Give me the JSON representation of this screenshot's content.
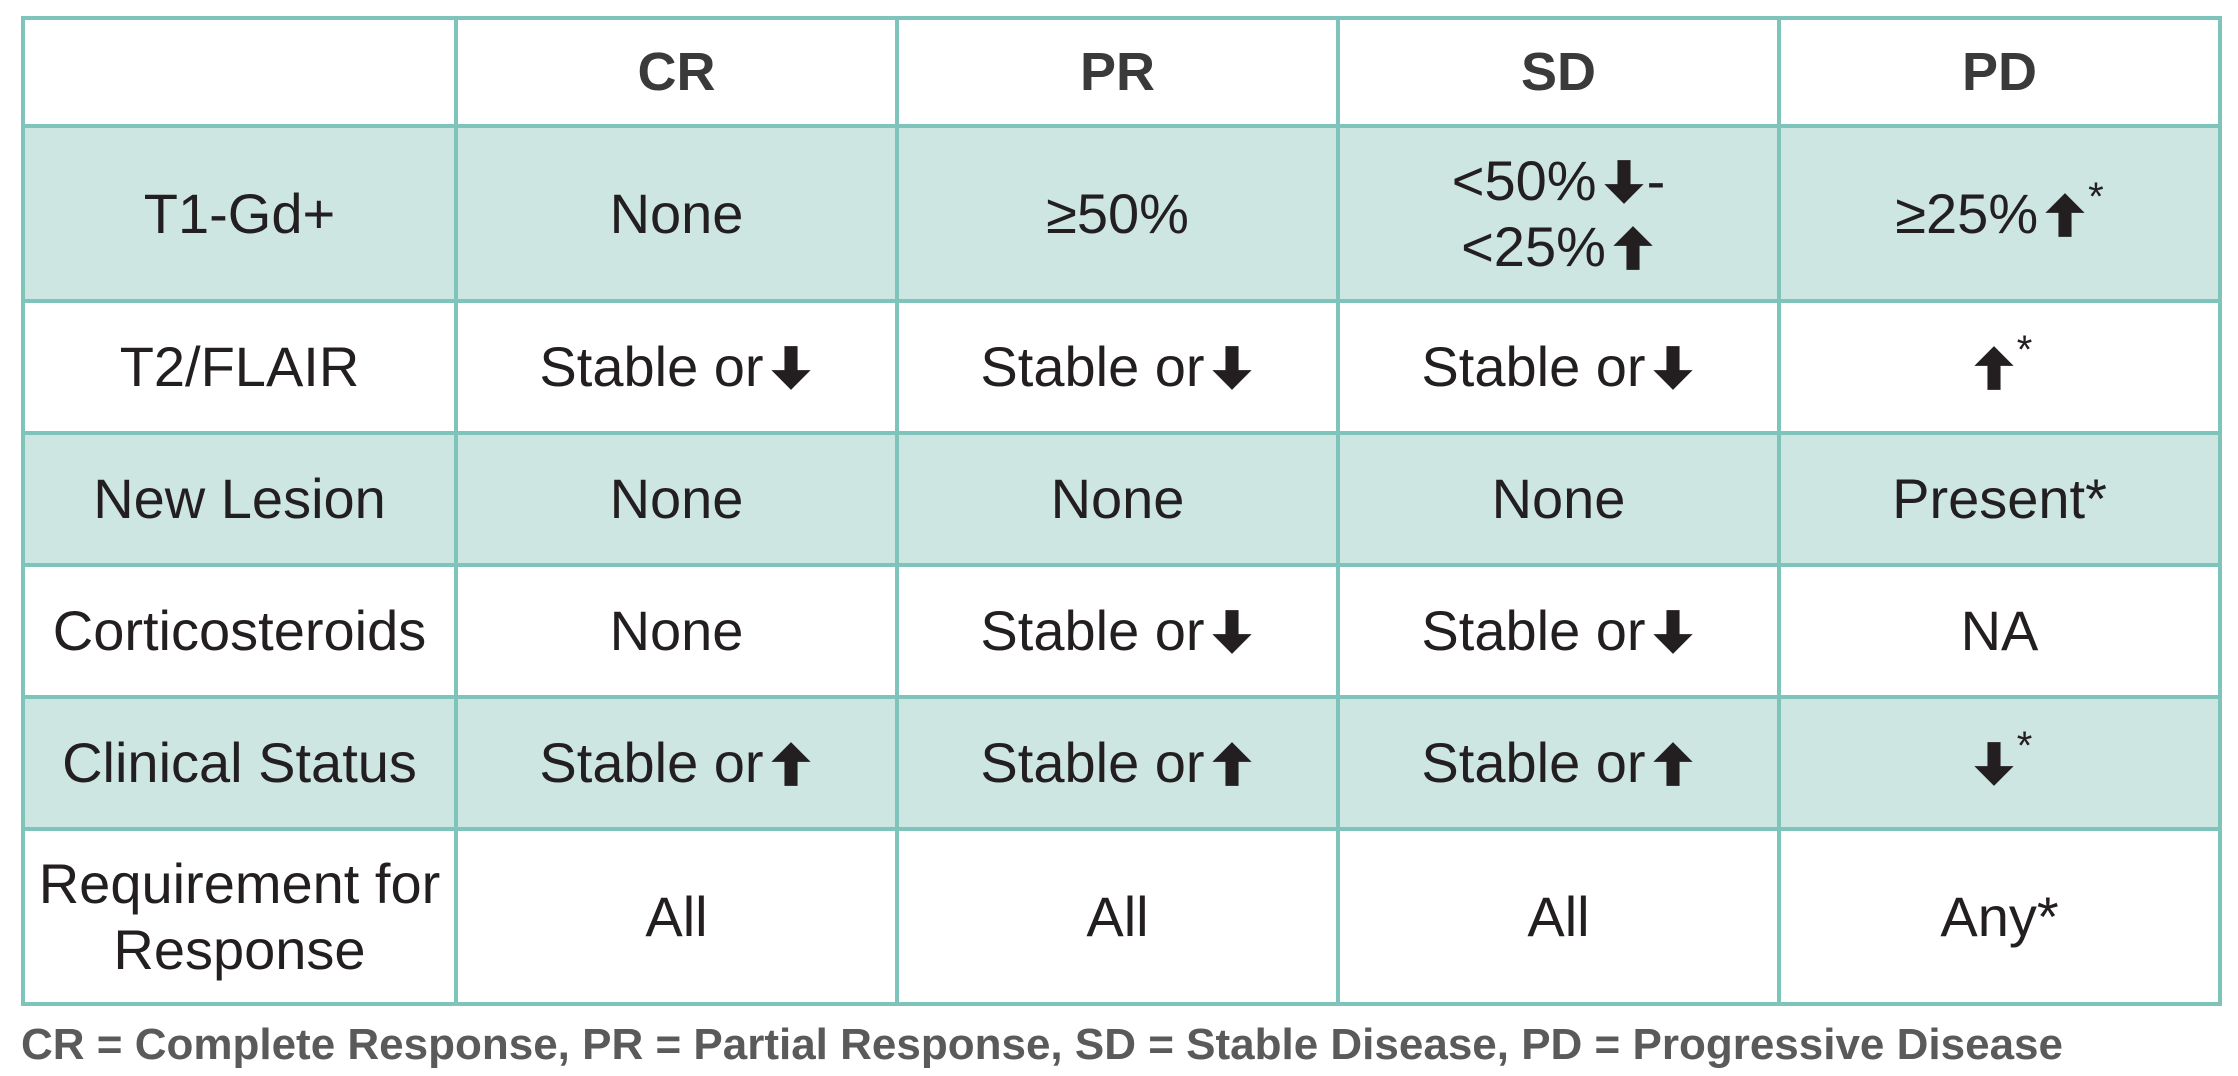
{
  "table": {
    "corner": "",
    "headers": [
      "CR",
      "PR",
      "SD",
      "PD"
    ],
    "rows": [
      {
        "label": "T1-Gd+",
        "cr": "None",
        "pr": "≥50%",
        "sd_line1": "<50%",
        "sd_line1_icon": "arrow-down-icon",
        "sd_line1_suffix": "-",
        "sd_line2": "<25%",
        "sd_line2_icon": "arrow-up-icon",
        "pd": "≥25%",
        "pd_icon": "arrow-up-icon",
        "pd_star": "*"
      },
      {
        "label": "T2/FLAIR",
        "cr": "Stable or",
        "cr_icon": "arrow-down-icon",
        "pr": "Stable or",
        "pr_icon": "arrow-down-icon",
        "sd": "Stable or",
        "sd_icon": "arrow-down-icon",
        "pd_icon": "arrow-up-icon",
        "pd_star": "*"
      },
      {
        "label": "New Lesion",
        "cr": "None",
        "pr": "None",
        "sd": "None",
        "pd": "Present*"
      },
      {
        "label": "Corticosteroids",
        "cr": "None",
        "pr": "Stable or",
        "pr_icon": "arrow-down-icon",
        "sd": "Stable or",
        "sd_icon": "arrow-down-icon",
        "pd": "NA"
      },
      {
        "label": "Clinical Status",
        "cr": "Stable or",
        "cr_icon": "arrow-up-icon",
        "pr": "Stable or",
        "pr_icon": "arrow-up-icon",
        "sd": "Stable or",
        "sd_icon": "arrow-up-icon",
        "pd_icon": "arrow-down-icon",
        "pd_star": "*"
      },
      {
        "label_line1": "Requirement for",
        "label_line2": "Response",
        "cr": "All",
        "pr": "All",
        "sd": "All",
        "pd": "Any*"
      }
    ]
  },
  "footnote": "CR = Complete Response, PR = Partial Response, SD = Stable Disease, PD = Progressive Disease",
  "colors": {
    "border": "#7fc4bb",
    "shaded_row": "#cde6e2",
    "text": "#231f20",
    "header_text": "#3a3a3a",
    "footnote_text": "#5a5a5a"
  }
}
